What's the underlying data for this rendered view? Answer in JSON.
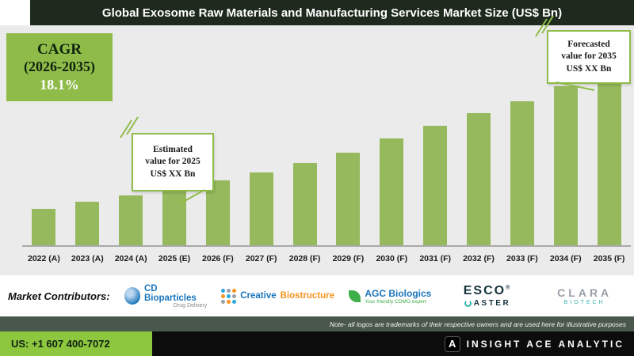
{
  "header": {
    "title": "Global Exosome Raw Materials and Manufacturing Services Market Size (US$ Bn)"
  },
  "cagr_box": {
    "label": "CAGR",
    "range": "(2026-2035)",
    "value": "18.1%"
  },
  "callouts": {
    "estimated": {
      "lines": [
        "Estimated",
        "value for 2025",
        "US$ XX Bn"
      ]
    },
    "forecasted": {
      "lines": [
        "Forecasted",
        "value for 2035",
        "US$ XX Bn"
      ]
    }
  },
  "chart_data": {
    "type": "bar",
    "title": "Global Exosome Raw Materials and Manufacturing Services Market Size (US$ Bn)",
    "unit": "US$ Bn",
    "categories": [
      "2022 (A)",
      "2023 (A)",
      "2024 (A)",
      "2025 (E)",
      "2026 (F)",
      "2027 (F)",
      "2028 (F)",
      "2029 (F)",
      "2030 (F)",
      "2031 (F)",
      "2032 (F)",
      "2033 (F)",
      "2034 (F)",
      "2035 (F)"
    ],
    "values_relative": [
      0.2,
      0.24,
      0.275,
      0.31,
      0.355,
      0.4,
      0.45,
      0.51,
      0.585,
      0.655,
      0.725,
      0.79,
      0.875,
      1.0
    ],
    "value_labels_shown": false,
    "cagr_2026_2035": "18.1%",
    "bar_color": "#95b95c",
    "accent_green": "#8fbc49",
    "plot_background": "#ebebeb",
    "legend": "none",
    "grid": "off"
  },
  "contributors": {
    "label": "Market Contributors:",
    "items": [
      {
        "name": "CD Bioparticles",
        "tagline": "Drug Delivery"
      },
      {
        "name": "Creative Biostructure",
        "part1": "Creative",
        "part2": "Biostructure"
      },
      {
        "name": "AGC Biologics",
        "tagline": "Your friendly CDMO expert"
      },
      {
        "name": "ESCO Aster",
        "line1": "ESCO",
        "line2": "ASTER"
      },
      {
        "name": "CLARA Biotech",
        "line1": "CLARA",
        "line2": "BIOTECH"
      }
    ]
  },
  "note": {
    "text": "Note- all logos are trademarks of their respective owners and are used here for illustrative purposes"
  },
  "footer": {
    "phone": "US: +1 607 400-7072",
    "brand": "INSIGHT ACE ANALYTIC"
  }
}
